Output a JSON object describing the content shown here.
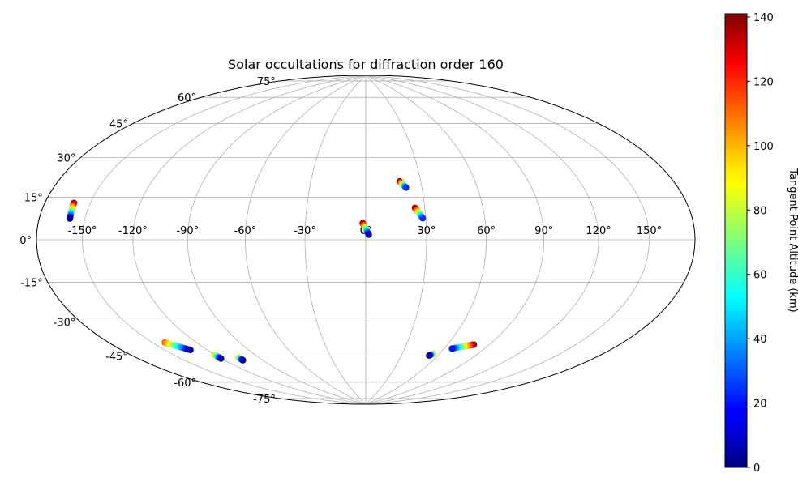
{
  "chart_data": {
    "type": "scatter",
    "projection": "hammer",
    "title": "Solar occultations for diffraction order 160",
    "grid": true,
    "lon_ticks": [
      {
        "value": -150,
        "label": "-150°"
      },
      {
        "value": -120,
        "label": "-120°"
      },
      {
        "value": -90,
        "label": "-90°"
      },
      {
        "value": -60,
        "label": "-60°"
      },
      {
        "value": -30,
        "label": "-30°"
      },
      {
        "value": 0,
        "label": "0°"
      },
      {
        "value": 30,
        "label": "30°"
      },
      {
        "value": 60,
        "label": "60°"
      },
      {
        "value": 90,
        "label": "90°"
      },
      {
        "value": 120,
        "label": "120°"
      },
      {
        "value": 150,
        "label": "150°"
      }
    ],
    "lat_ticks": [
      {
        "value": 75,
        "label": "75°"
      },
      {
        "value": 60,
        "label": "60°"
      },
      {
        "value": 45,
        "label": "45°"
      },
      {
        "value": 30,
        "label": "30°"
      },
      {
        "value": 15,
        "label": "15°"
      },
      {
        "value": 0,
        "label": "0°"
      },
      {
        "value": -15,
        "label": "-15°"
      },
      {
        "value": -30,
        "label": "-30°"
      },
      {
        "value": -45,
        "label": "-45°"
      },
      {
        "value": -60,
        "label": "-60°"
      },
      {
        "value": -75,
        "label": "-75°"
      }
    ],
    "colorbar": {
      "label": "Tangent Point Altitude (km)",
      "range": [
        0,
        141
      ],
      "colormap": "jet",
      "ticks": [
        {
          "value": 0,
          "label": "0"
        },
        {
          "value": 20,
          "label": "20"
        },
        {
          "value": 40,
          "label": "40"
        },
        {
          "value": 60,
          "label": "60"
        },
        {
          "value": 80,
          "label": "80"
        },
        {
          "value": 100,
          "label": "100"
        },
        {
          "value": 120,
          "label": "120"
        },
        {
          "value": 140,
          "label": "140"
        }
      ]
    },
    "tracks": [
      {
        "start": {
          "lon": -160.5,
          "lat": 14.0,
          "alt": 140
        },
        "end": {
          "lon": -159.5,
          "lat": 8.0,
          "alt": 5
        }
      },
      {
        "start": {
          "lon": -1.5,
          "lat": 8.2,
          "alt": 140
        },
        "end": {
          "lon": 1.5,
          "lat": 2.5,
          "alt": 5
        }
      },
      {
        "start": {
          "lon": 18.5,
          "lat": 29.0,
          "alt": 140
        },
        "end": {
          "lon": 21.5,
          "lat": 25.8,
          "alt": 25
        }
      },
      {
        "start": {
          "lon": 25.0,
          "lat": 15.7,
          "alt": 140
        },
        "end": {
          "lon": 28.5,
          "lat": 10.5,
          "alt": 25
        }
      },
      {
        "start": {
          "lon": -141.5,
          "lat": -44.0,
          "alt": 110
        },
        "end": {
          "lon": -132.0,
          "lat": -49.0,
          "alt": 5
        }
      },
      {
        "start": {
          "lon": -120.5,
          "lat": -53.0,
          "alt": 100
        },
        "end": {
          "lon": -120.5,
          "lat": -55.0,
          "alt": 5
        }
      },
      {
        "start": {
          "lon": -106.0,
          "lat": -56.0,
          "alt": 100
        },
        "end": {
          "lon": -106.0,
          "lat": -57.5,
          "alt": 5
        }
      },
      {
        "start": {
          "lon": 79.0,
          "lat": -51.0,
          "alt": 140
        },
        "end": {
          "lon": 66.0,
          "lat": -54.0,
          "alt": 20
        }
      },
      {
        "start": {
          "lon": 55.0,
          "lat": -57.5,
          "alt": 100
        },
        "end": {
          "lon": 53.0,
          "lat": -58.5,
          "alt": 5
        }
      }
    ]
  }
}
